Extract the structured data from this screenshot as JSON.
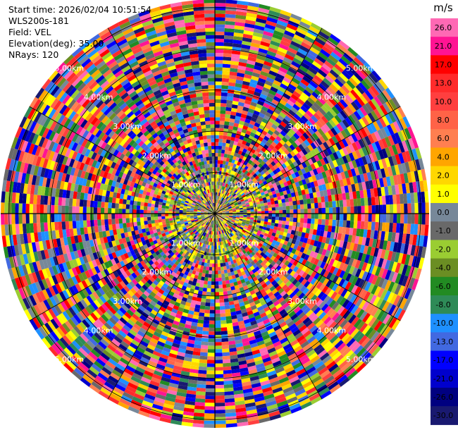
{
  "header": {
    "start_time": "Start time: 2026/02/04 10:51:54",
    "instrument": "WLS200s-181",
    "field": "Field: VEL",
    "elevation": "Elevation(deg): 35.00",
    "nrays": "NRays: 120"
  },
  "chart_data": {
    "type": "heatmap",
    "projection": "polar (PPI scan)",
    "field": "VEL",
    "nrays": 120,
    "elevation_deg": 35.0,
    "range_rings_km": [
      1,
      2,
      3,
      4,
      5
    ],
    "range_ring_labels": [
      "1.00km",
      "2.00km",
      "3.00km",
      "4.00km",
      "5.00km"
    ],
    "max_range_km": 5.2,
    "colorbar": {
      "unit": "m/s",
      "ticks": [
        "26.0",
        "21.0",
        "17.0",
        "13.0",
        "10.0",
        "8.0",
        "6.0",
        "4.0",
        "2.0",
        "1.0",
        "0.0",
        "-1.0",
        "-2.0",
        "-4.0",
        "-6.0",
        "-8.0",
        "-10.0",
        "-13.0",
        "-17.0",
        "-21.0",
        "-26.0",
        "-30.0"
      ],
      "colors": [
        "#ff69b4",
        "#ff1493",
        "#ff0000",
        "#ff2b2b",
        "#ff3f3f",
        "#ff6347",
        "#ff7f50",
        "#ffa500",
        "#ffd700",
        "#ffff00",
        "#778899",
        "#696969",
        "#9acd32",
        "#6b8e23",
        "#228b22",
        "#2e8b57",
        "#1e90ff",
        "#4169e1",
        "#0000ff",
        "#0000cd",
        "#000080",
        "#191970"
      ],
      "range": [
        -30,
        30
      ]
    },
    "grid": true
  }
}
